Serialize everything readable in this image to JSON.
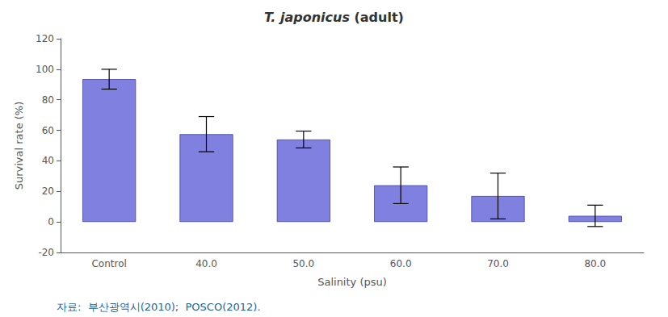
{
  "chart_data": {
    "type": "bar",
    "title": "T. japonicus (adult)",
    "xlabel": "Salinity (psu)",
    "ylabel": "Survival rate (%)",
    "annotations": [
      "자료:  부산광역시(2010);  POSCO(2012)."
    ],
    "categories": [
      "Control",
      "40.0",
      "50.0",
      "60.0",
      "70.0",
      "80.0"
    ],
    "values": [
      93.5,
      57.5,
      54.0,
      24.0,
      17.0,
      4.0
    ],
    "errors": [
      6.5,
      11.5,
      5.5,
      12.0,
      15.0,
      7.0
    ],
    "color": "#8080e0",
    "ylim": [
      -20,
      120
    ],
    "yticks": [
      -20,
      0,
      20,
      40,
      60,
      80,
      100,
      120
    ],
    "grid": false
  }
}
